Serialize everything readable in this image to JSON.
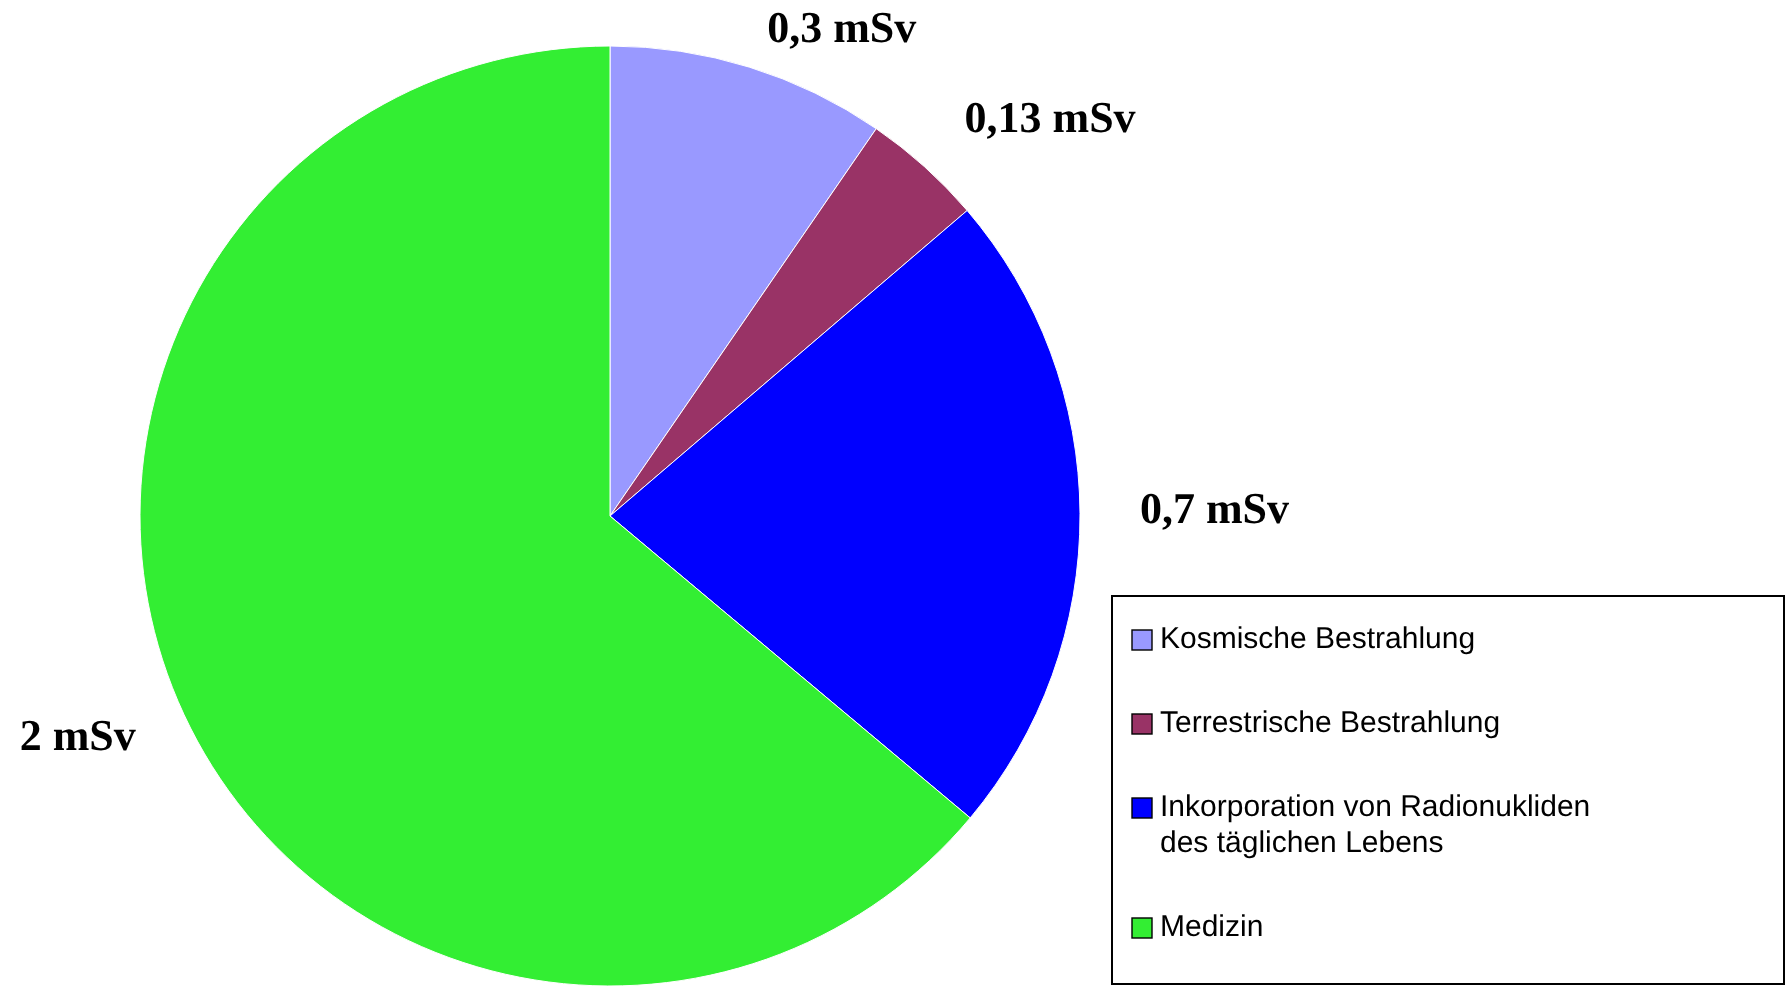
{
  "chart_data": {
    "type": "pie",
    "categories": [
      "Kosmische Bestrahlung",
      "Terrestrische Bestrahlung",
      "Inkorporation von Radionukliden des täglichen Lebens",
      "Medizin"
    ],
    "values": [
      0.3,
      0.13,
      0.7,
      2
    ],
    "value_labels": [
      "0,3 mSv",
      "0,13 mSv",
      "0,7 mSv",
      "2 mSv"
    ],
    "colors": [
      "#9999ff",
      "#993366",
      "#0000ff",
      "#33ee33"
    ],
    "legend": "bottom right"
  }
}
